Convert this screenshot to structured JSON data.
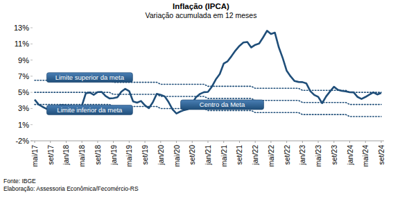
{
  "chart_data": {
    "type": "line",
    "title": "Inflação (IPCA)",
    "subtitle": "Variação acumulada em 12 meses",
    "annotations": [
      "Fonte: IBGE",
      "Elaboração: Assessoria Econômica/Fecomércio-RS"
    ],
    "categories": [
      "mai/17",
      null,
      null,
      null,
      "set/17",
      null,
      null,
      null,
      "jan/18",
      null,
      null,
      null,
      "mai/18",
      null,
      null,
      null,
      "set/18",
      null,
      null,
      null,
      "jan/19",
      null,
      null,
      null,
      "mai/19",
      null,
      null,
      null,
      "set/19",
      null,
      null,
      null,
      "jan/20",
      null,
      null,
      null,
      "mai/20",
      null,
      null,
      null,
      "set/20",
      null,
      null,
      null,
      "jan/21",
      null,
      null,
      null,
      "mai/21",
      null,
      null,
      null,
      "set/21",
      null,
      null,
      null,
      "jan/22",
      null,
      null,
      null,
      "mai/22",
      null,
      null,
      null,
      "set/22",
      null,
      null,
      null,
      "jan/23",
      null,
      null,
      null,
      "mai/23",
      null,
      null,
      null,
      "set/23",
      null,
      null,
      null,
      "jan/24",
      null,
      null,
      null,
      "mai/24",
      null,
      null,
      null,
      "set/24"
    ],
    "series": [
      {
        "color": "#1f4e79",
        "line_style": "solid",
        "values": [
          3.6,
          3.0,
          2.71,
          2.46,
          2.54,
          2.7,
          2.8,
          2.95,
          2.86,
          2.84,
          2.68,
          2.76,
          2.86,
          4.39,
          4.48,
          4.19,
          4.53,
          4.56,
          4.05,
          3.75,
          3.78,
          3.89,
          4.58,
          4.94,
          4.66,
          3.37,
          3.22,
          3.43,
          2.89,
          2.54,
          3.27,
          4.31,
          4.19,
          4.01,
          3.3,
          2.4,
          1.88,
          2.13,
          2.31,
          2.44,
          3.14,
          3.92,
          4.31,
          4.52,
          4.56,
          5.2,
          6.1,
          6.76,
          8.06,
          8.35,
          8.99,
          9.68,
          10.25,
          10.67,
          10.74,
          10.06,
          10.38,
          10.54,
          11.3,
          12.13,
          11.73,
          11.89,
          10.07,
          8.73,
          7.17,
          6.47,
          5.9,
          5.79,
          5.77,
          5.6,
          4.65,
          4.18,
          3.94,
          3.16,
          3.99,
          4.61,
          5.19,
          4.82,
          4.68,
          4.62,
          4.51,
          4.5,
          3.93,
          3.69,
          3.93,
          4.23,
          4.5,
          4.24,
          4.42
        ]
      },
      {
        "name": "Limite superior da meta",
        "color": "#1f4e79",
        "line_style": "dotted",
        "values": [
          6.0,
          6.0,
          6.0,
          6.0,
          6.0,
          6.0,
          6.0,
          6.0,
          6.0,
          6.0,
          6.0,
          6.0,
          6.0,
          6.0,
          6.0,
          6.0,
          6.0,
          6.0,
          6.0,
          6.0,
          5.75,
          5.75,
          5.75,
          5.75,
          5.75,
          5.75,
          5.75,
          5.75,
          5.75,
          5.75,
          5.75,
          5.75,
          5.5,
          5.5,
          5.5,
          5.5,
          5.5,
          5.5,
          5.5,
          5.5,
          5.5,
          5.5,
          5.5,
          5.5,
          5.25,
          5.25,
          5.25,
          5.25,
          5.25,
          5.25,
          5.25,
          5.25,
          5.25,
          5.25,
          5.25,
          5.25,
          5.0,
          5.0,
          5.0,
          5.0,
          5.0,
          5.0,
          5.0,
          5.0,
          5.0,
          5.0,
          5.0,
          5.0,
          4.75,
          4.75,
          4.75,
          4.75,
          4.75,
          4.75,
          4.75,
          4.75,
          4.75,
          4.75,
          4.75,
          4.75,
          4.5,
          4.5,
          4.5,
          4.5,
          4.5,
          4.5,
          4.5,
          4.5,
          4.5
        ]
      },
      {
        "name": "Centro da Meta",
        "color": "#1f4e79",
        "line_style": "dotted",
        "values": [
          4.5,
          4.5,
          4.5,
          4.5,
          4.5,
          4.5,
          4.5,
          4.5,
          4.5,
          4.5,
          4.5,
          4.5,
          4.5,
          4.5,
          4.5,
          4.5,
          4.5,
          4.5,
          4.5,
          4.5,
          4.25,
          4.25,
          4.25,
          4.25,
          4.25,
          4.25,
          4.25,
          4.25,
          4.25,
          4.25,
          4.25,
          4.25,
          4.0,
          4.0,
          4.0,
          4.0,
          4.0,
          4.0,
          4.0,
          4.0,
          4.0,
          4.0,
          4.0,
          4.0,
          3.75,
          3.75,
          3.75,
          3.75,
          3.75,
          3.75,
          3.75,
          3.75,
          3.75,
          3.75,
          3.75,
          3.75,
          3.5,
          3.5,
          3.5,
          3.5,
          3.5,
          3.5,
          3.5,
          3.5,
          3.5,
          3.5,
          3.5,
          3.5,
          3.25,
          3.25,
          3.25,
          3.25,
          3.25,
          3.25,
          3.25,
          3.25,
          3.25,
          3.25,
          3.25,
          3.25,
          3.0,
          3.0,
          3.0,
          3.0,
          3.0,
          3.0,
          3.0,
          3.0,
          3.0
        ]
      },
      {
        "name": "Limite inferior da meta",
        "color": "#1f4e79",
        "line_style": "dotted",
        "values": [
          3.0,
          3.0,
          3.0,
          3.0,
          3.0,
          3.0,
          3.0,
          3.0,
          3.0,
          3.0,
          3.0,
          3.0,
          3.0,
          3.0,
          3.0,
          3.0,
          3.0,
          3.0,
          3.0,
          3.0,
          2.75,
          2.75,
          2.75,
          2.75,
          2.75,
          2.75,
          2.75,
          2.75,
          2.75,
          2.75,
          2.75,
          2.75,
          2.5,
          2.5,
          2.5,
          2.5,
          2.5,
          2.5,
          2.5,
          2.5,
          2.5,
          2.5,
          2.5,
          2.5,
          2.25,
          2.25,
          2.25,
          2.25,
          2.25,
          2.25,
          2.25,
          2.25,
          2.25,
          2.25,
          2.25,
          2.25,
          2.0,
          2.0,
          2.0,
          2.0,
          2.0,
          2.0,
          2.0,
          2.0,
          2.0,
          2.0,
          2.0,
          2.0,
          1.75,
          1.75,
          1.75,
          1.75,
          1.75,
          1.75,
          1.75,
          1.75,
          1.75,
          1.75,
          1.75,
          1.75,
          1.5,
          1.5,
          1.5,
          1.5,
          1.5,
          1.5,
          1.5,
          1.5,
          1.5
        ]
      }
    ],
    "ylim": [
      -1.5,
      12.5
    ],
    "yticks": [
      {
        "value": -1.5,
        "label": "-2%"
      },
      {
        "value": 0.5,
        "label": "1%"
      },
      {
        "value": 2.5,
        "label": "3%"
      },
      {
        "value": 4.5,
        "label": "5%"
      },
      {
        "value": 6.5,
        "label": "7%"
      },
      {
        "value": 8.5,
        "label": "9%"
      },
      {
        "value": 10.5,
        "label": "11%"
      },
      {
        "value": 12.5,
        "label": "13%"
      }
    ],
    "grid": false
  }
}
